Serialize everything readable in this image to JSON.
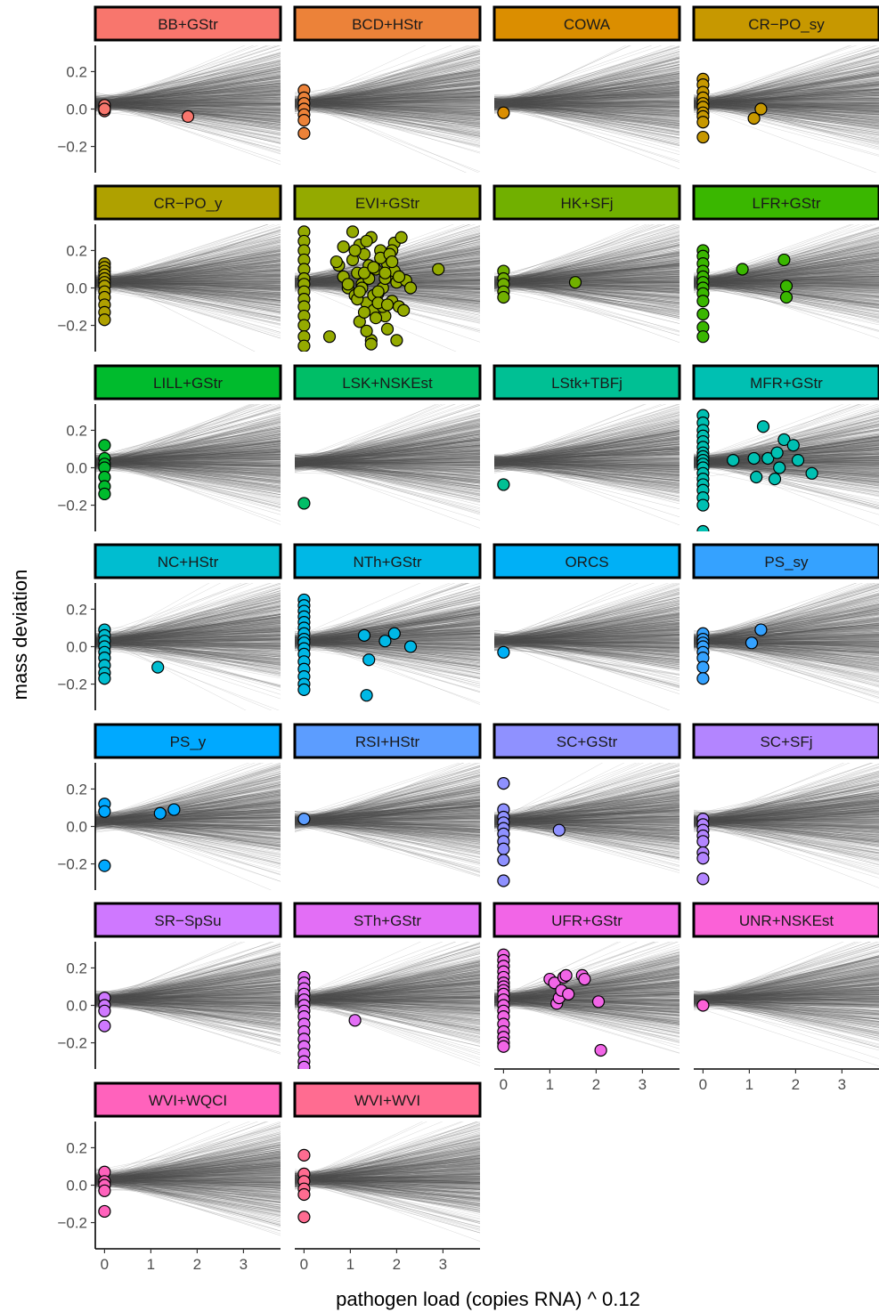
{
  "chart_data": {
    "type": "scatter",
    "xlabel": "pathogen load (copies RNA) ^ 0.12",
    "ylabel": "mass deviation",
    "xlim": [
      -0.2,
      3.8
    ],
    "ylim": [
      -0.34,
      0.34
    ],
    "x_ticks": [
      0,
      1,
      2,
      3
    ],
    "x_tick_labels": [
      "0",
      "1",
      "2",
      "3"
    ],
    "y_ticks": [
      -0.2,
      0.0,
      0.2
    ],
    "y_tick_labels": [
      "-0.2",
      "0.0",
      "0.2"
    ],
    "grid": false,
    "legend": "none",
    "background_lines": {
      "description": "posterior regression lines",
      "color": "#4d4d4d",
      "center_intercept": 0.03,
      "center_slope": 0.01
    },
    "panels": [
      {
        "label": "BB+GStr",
        "color": "#F8766D",
        "x": [
          0,
          0,
          0,
          1.8
        ],
        "y": [
          0.02,
          -0.01,
          0.0,
          -0.04
        ]
      },
      {
        "label": "BCD+HStr",
        "color": "#EC8239",
        "x": [
          0,
          0,
          0,
          0,
          0,
          0,
          0
        ],
        "y": [
          0.1,
          0.06,
          0.03,
          0.0,
          -0.03,
          -0.06,
          -0.13
        ]
      },
      {
        "label": "COWA",
        "color": "#DB8E00",
        "x": [
          0
        ],
        "y": [
          -0.02
        ]
      },
      {
        "label": "CR−PO_sy",
        "color": "#C79800",
        "x": [
          0,
          0,
          0,
          0,
          0,
          0,
          0,
          0,
          0,
          0,
          1.1,
          1.25
        ],
        "y": [
          0.16,
          0.13,
          0.09,
          0.06,
          0.03,
          0.01,
          -0.02,
          -0.04,
          -0.07,
          -0.15,
          -0.05,
          0.0
        ]
      },
      {
        "label": "CR−PO_y",
        "color": "#AFA100",
        "x": [
          0,
          0,
          0,
          0,
          0,
          0,
          0,
          0,
          0,
          0,
          0,
          0
        ],
        "y": [
          0.13,
          0.11,
          0.09,
          0.07,
          0.05,
          0.03,
          0.01,
          -0.02,
          -0.05,
          -0.09,
          -0.13,
          -0.17
        ]
      },
      {
        "label": "EVI+GStr",
        "color": "#94AA00",
        "x": [
          0,
          0,
          0,
          0,
          0,
          0,
          0,
          0,
          0,
          0,
          0,
          0,
          0,
          0,
          0.55,
          0.75,
          0.85,
          0.95,
          1.05,
          1.1,
          1.15,
          1.2,
          1.25,
          1.3,
          1.35,
          1.4,
          1.45,
          1.5,
          1.55,
          1.6,
          1.65,
          1.7,
          1.75,
          1.8,
          1.85,
          1.9,
          1.95,
          2.0,
          2.05,
          2.1,
          2.2,
          2.3,
          2.9,
          1.05,
          1.2,
          1.35,
          1.5,
          1.65,
          1.8,
          1.95,
          1.15,
          1.4,
          1.7,
          1.9,
          2.05,
          1.25,
          1.55,
          1.85,
          2.15,
          1.3,
          1.6,
          1.75,
          0.95,
          1.1,
          1.45,
          0.7,
          2.0,
          1.35,
          0.85,
          1.6,
          1.2,
          1.5,
          1.75,
          1.9,
          1.3,
          1.8,
          1.45
        ],
        "y": [
          0.3,
          0.25,
          0.2,
          0.15,
          0.1,
          0.05,
          0.02,
          -0.02,
          -0.06,
          -0.1,
          -0.15,
          -0.2,
          -0.26,
          -0.31,
          -0.26,
          0.12,
          0.06,
          0.0,
          0.15,
          -0.04,
          0.08,
          0.23,
          0.02,
          0.18,
          -0.08,
          0.05,
          0.27,
          -0.12,
          0.1,
          -0.03,
          0.2,
          0.0,
          -0.15,
          0.13,
          0.07,
          -0.07,
          0.24,
          0.03,
          -0.1,
          0.27,
          0.04,
          0.0,
          0.1,
          0.3,
          -0.18,
          0.25,
          -0.04,
          0.16,
          -0.22,
          0.09,
          -0.06,
          0.12,
          -0.1,
          0.2,
          0.06,
          0.0,
          -0.16,
          0.18,
          -0.12,
          0.08,
          -0.02,
          0.05,
          0.02,
          0.2,
          -0.28,
          0.14,
          -0.28,
          -0.23,
          0.22,
          -0.08,
          -0.02,
          0.11,
          0.08,
          0.14,
          -0.13,
          -0.09,
          -0.3
        ]
      },
      {
        "label": "HK+SFj",
        "color": "#71B000",
        "x": [
          0,
          0,
          0,
          0,
          0,
          1.55
        ],
        "y": [
          0.09,
          0.05,
          0.02,
          -0.02,
          -0.05,
          0.03
        ]
      },
      {
        "label": "LFR+GStr",
        "color": "#3AB700",
        "x": [
          0,
          0,
          0,
          0,
          0,
          0,
          0,
          0,
          0,
          0,
          0,
          0,
          0.85,
          1.75,
          1.8,
          1.8
        ],
        "y": [
          0.2,
          0.17,
          0.13,
          0.09,
          0.06,
          0.03,
          0.0,
          -0.03,
          -0.07,
          -0.14,
          -0.21,
          -0.26,
          0.1,
          0.15,
          0.01,
          -0.05
        ]
      },
      {
        "label": "LILL+GStr",
        "color": "#00BB2D",
        "x": [
          0,
          0,
          0,
          0,
          0,
          0,
          0
        ],
        "y": [
          0.12,
          0.05,
          0.02,
          0.0,
          -0.05,
          -0.1,
          -0.14
        ]
      },
      {
        "label": "LSK+NSKEst",
        "color": "#00BE67",
        "x": [
          0
        ],
        "y": [
          -0.19
        ]
      },
      {
        "label": "LStk+TBFj",
        "color": "#00C094",
        "x": [
          0
        ],
        "y": [
          -0.09
        ]
      },
      {
        "label": "MFR+GStr",
        "color": "#00C0B2",
        "x": [
          0,
          0,
          0,
          0,
          0,
          0,
          0,
          0,
          0,
          0,
          0,
          0,
          0,
          0,
          0,
          0,
          0,
          0,
          0.65,
          1.1,
          1.15,
          1.3,
          1.4,
          1.55,
          1.6,
          1.65,
          1.75,
          1.95,
          2.05,
          2.35
        ],
        "y": [
          0.28,
          0.24,
          0.2,
          0.17,
          0.14,
          0.11,
          0.08,
          0.06,
          0.04,
          0.02,
          0.0,
          -0.03,
          -0.06,
          -0.09,
          -0.12,
          -0.16,
          -0.2,
          -0.34,
          0.04,
          0.05,
          -0.05,
          0.22,
          0.05,
          -0.06,
          0.08,
          0.0,
          0.15,
          0.12,
          0.04,
          -0.03
        ]
      },
      {
        "label": "NC+HStr",
        "color": "#00BDD0",
        "x": [
          0,
          0,
          0,
          0,
          0,
          0,
          0,
          0,
          0,
          1.15
        ],
        "y": [
          0.09,
          0.06,
          0.03,
          0.0,
          -0.03,
          -0.06,
          -0.1,
          -0.14,
          -0.17,
          -0.11
        ]
      },
      {
        "label": "NTh+GStr",
        "color": "#00B8E6",
        "x": [
          0,
          0,
          0,
          0,
          0,
          0,
          0,
          0,
          0,
          0,
          0,
          0,
          0,
          0,
          0,
          0,
          1.3,
          1.35,
          1.4,
          1.75,
          1.95,
          2.3
        ],
        "y": [
          0.25,
          0.22,
          0.19,
          0.16,
          0.13,
          0.1,
          0.07,
          0.04,
          0.02,
          -0.01,
          -0.04,
          -0.08,
          -0.12,
          -0.16,
          -0.2,
          -0.23,
          0.06,
          -0.26,
          -0.07,
          0.03,
          0.07,
          0.0
        ]
      },
      {
        "label": "ORCS",
        "color": "#00B0F6",
        "x": [
          0
        ],
        "y": [
          -0.03
        ]
      },
      {
        "label": "PS_sy",
        "color": "#35A2FF",
        "x": [
          0,
          0,
          0,
          0,
          0,
          0,
          0,
          0,
          1.05,
          1.25
        ],
        "y": [
          0.07,
          0.04,
          0.02,
          0.0,
          -0.03,
          -0.06,
          -0.11,
          -0.17,
          0.02,
          0.09
        ]
      },
      {
        "label": "PS_y",
        "color": "#00A9FF",
        "x": [
          0,
          0,
          0,
          1.2,
          1.5
        ],
        "y": [
          0.12,
          0.08,
          -0.21,
          0.07,
          0.09
        ]
      },
      {
        "label": "RSI+HStr",
        "color": "#5C9DFF",
        "x": [
          0
        ],
        "y": [
          0.04
        ]
      },
      {
        "label": "SC+GStr",
        "color": "#8F91FF",
        "x": [
          0,
          0,
          0,
          0,
          0,
          0,
          0,
          0,
          0,
          0,
          1.2
        ],
        "y": [
          0.23,
          0.09,
          0.05,
          0.02,
          -0.01,
          -0.04,
          -0.08,
          -0.12,
          -0.18,
          -0.29,
          -0.02
        ]
      },
      {
        "label": "SC+SFj",
        "color": "#B385FF",
        "x": [
          0,
          0,
          0,
          0,
          0,
          0,
          0,
          0
        ],
        "y": [
          0.04,
          0.01,
          -0.02,
          -0.05,
          -0.08,
          -0.14,
          -0.17,
          -0.28
        ]
      },
      {
        "label": "SR−SpSu",
        "color": "#CF78FF",
        "x": [
          0,
          0,
          0,
          0
        ],
        "y": [
          0.04,
          0.0,
          -0.03,
          -0.11
        ]
      },
      {
        "label": "STh+GStr",
        "color": "#E36EF6",
        "x": [
          0,
          0,
          0,
          0,
          0,
          0,
          0,
          0,
          0,
          0,
          0,
          0,
          0,
          0,
          0,
          1.1
        ],
        "y": [
          0.15,
          0.12,
          0.09,
          0.06,
          0.03,
          0.0,
          -0.03,
          -0.06,
          -0.1,
          -0.14,
          -0.18,
          -0.22,
          -0.26,
          -0.3,
          -0.33,
          -0.08
        ]
      },
      {
        "label": "UFR+GStr",
        "color": "#F265E7",
        "x": [
          0,
          0,
          0,
          0,
          0,
          0,
          0,
          0,
          0,
          0,
          0,
          0,
          0,
          0,
          0,
          0,
          0,
          0,
          1.0,
          1.1,
          1.15,
          1.2,
          1.25,
          1.3,
          1.35,
          1.4,
          1.7,
          1.75,
          2.05,
          2.1
        ],
        "y": [
          0.27,
          0.24,
          0.21,
          0.18,
          0.15,
          0.12,
          0.1,
          0.08,
          0.06,
          0.03,
          0.0,
          -0.03,
          -0.06,
          -0.1,
          -0.14,
          -0.17,
          -0.2,
          -0.22,
          0.14,
          0.12,
          0.01,
          0.04,
          0.08,
          0.15,
          0.16,
          0.06,
          0.16,
          0.14,
          0.02,
          -0.24
        ]
      },
      {
        "label": "UNR+NSKEst",
        "color": "#FB61D7",
        "x": [
          0
        ],
        "y": [
          0.0
        ]
      },
      {
        "label": "WVI+WQCI",
        "color": "#FF62BC",
        "x": [
          0,
          0,
          0,
          0,
          0
        ],
        "y": [
          0.07,
          0.02,
          0.0,
          -0.03,
          -0.14
        ]
      },
      {
        "label": "WVI+WVI",
        "color": "#FF6C91",
        "x": [
          0,
          0,
          0,
          0,
          0,
          0
        ],
        "y": [
          0.16,
          0.06,
          0.02,
          -0.02,
          -0.05,
          -0.17
        ]
      }
    ]
  }
}
